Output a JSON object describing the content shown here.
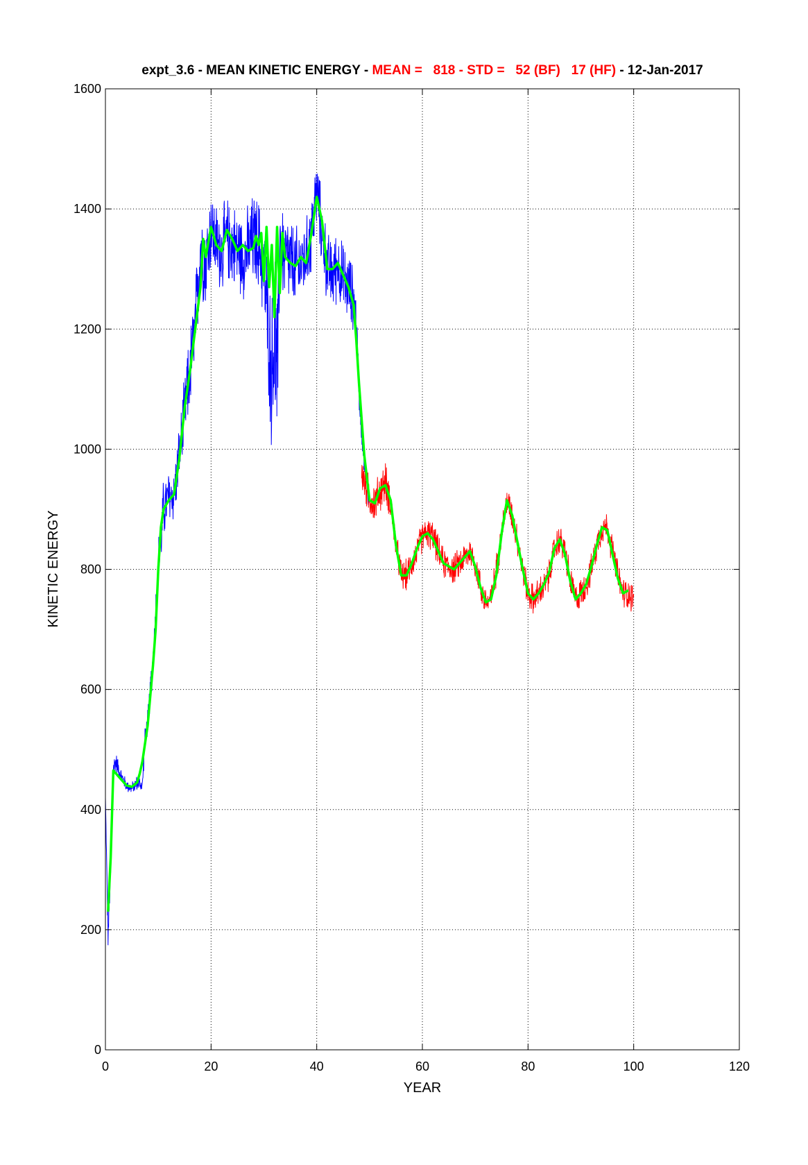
{
  "title_parts": [
    {
      "text": "expt_3.6 - MEAN KINETIC ENERGY - ",
      "color": "#000000"
    },
    {
      "text": "MEAN =   818 - STD =   52 (BF)   17 (HF)",
      "color": "#ff0000"
    },
    {
      "text": " - 12-Jan-2017",
      "color": "#000000"
    }
  ],
  "chart_data": {
    "type": "line",
    "xlabel": "YEAR",
    "ylabel": "KINETIC ENERGY",
    "xlim": [
      0,
      120
    ],
    "ylim": [
      0,
      1600
    ],
    "xticks": [
      0,
      20,
      40,
      60,
      80,
      100,
      120
    ],
    "yticks": [
      0,
      200,
      400,
      600,
      800,
      1000,
      1200,
      1400,
      1600
    ],
    "xtick_labels": [
      "0",
      "20",
      "40",
      "60",
      "80",
      "100",
      "120"
    ],
    "ytick_labels": [
      "0",
      "200",
      "400",
      "600",
      "800",
      "1000",
      "1200",
      "1400",
      "1600"
    ],
    "grid": true,
    "series": [
      {
        "color": "#0000ff",
        "style": "raw-noisy",
        "x": [
          0,
          0.5,
          1,
          1.5,
          2,
          3,
          4,
          5,
          6,
          7,
          7.5,
          8,
          9,
          10,
          11,
          12,
          13,
          14,
          15,
          16,
          17,
          18,
          19,
          20,
          21,
          22,
          23,
          24,
          25,
          26,
          27,
          28,
          29,
          30,
          31,
          31.5,
          32,
          32.5,
          33,
          34,
          35,
          36,
          37,
          38,
          39,
          40,
          41,
          42,
          43,
          44,
          45,
          46,
          47,
          47.5,
          48,
          49,
          50
        ],
        "y": [
          420,
          190,
          300,
          470,
          480,
          455,
          440,
          435,
          445,
          440,
          520,
          545,
          650,
          800,
          900,
          920,
          925,
          990,
          1060,
          1130,
          1200,
          1340,
          1310,
          1370,
          1340,
          1330,
          1350,
          1340,
          1335,
          1320,
          1330,
          1350,
          1340,
          1300,
          1180,
          1120,
          1200,
          1100,
          1350,
          1320,
          1310,
          1300,
          1310,
          1320,
          1360,
          1430,
          1360,
          1300,
          1290,
          1310,
          1280,
          1270,
          1250,
          1210,
          1100,
          980,
          910
        ],
        "noise": [
          0,
          30,
          30,
          25,
          20,
          15,
          12,
          12,
          15,
          15,
          20,
          25,
          40,
          60,
          60,
          55,
          55,
          60,
          70,
          80,
          90,
          90,
          90,
          80,
          80,
          80,
          80,
          80,
          80,
          80,
          85,
          90,
          90,
          100,
          130,
          150,
          200,
          180,
          110,
          90,
          90,
          80,
          80,
          70,
          80,
          70,
          70,
          70,
          70,
          70,
          70,
          70,
          60,
          50,
          40,
          30,
          25
        ]
      },
      {
        "color": "#ff0000",
        "style": "raw-noisy",
        "x": [
          48.5,
          50,
          51,
          52,
          53,
          54,
          55,
          56,
          57,
          58,
          59,
          60,
          61,
          62,
          63,
          64,
          65,
          66,
          67,
          68,
          69,
          70,
          71,
          72,
          73,
          74,
          75,
          76,
          77,
          78,
          79,
          80,
          81,
          82,
          83,
          84,
          85,
          86,
          87,
          88,
          89,
          90,
          91,
          92,
          93,
          94,
          95,
          96,
          97,
          98,
          99,
          100
        ],
        "y": [
          960,
          920,
          910,
          930,
          945,
          910,
          840,
          790,
          790,
          810,
          830,
          855,
          860,
          855,
          830,
          810,
          805,
          800,
          810,
          820,
          830,
          810,
          770,
          745,
          750,
          800,
          860,
          915,
          890,
          850,
          800,
          760,
          750,
          760,
          770,
          790,
          835,
          850,
          830,
          780,
          750,
          760,
          775,
          800,
          840,
          870,
          870,
          830,
          790,
          760,
          760,
          750
        ],
        "noise": [
          40,
          40,
          40,
          40,
          40,
          35,
          30,
          30,
          30,
          30,
          30,
          30,
          30,
          30,
          30,
          30,
          30,
          30,
          30,
          30,
          30,
          30,
          30,
          30,
          30,
          30,
          30,
          30,
          30,
          30,
          30,
          30,
          30,
          30,
          30,
          30,
          30,
          30,
          30,
          30,
          30,
          30,
          30,
          30,
          30,
          30,
          30,
          30,
          30,
          30,
          30,
          30
        ]
      },
      {
        "color": "#00ff00",
        "style": "smoothed",
        "x": [
          0.5,
          1,
          1.5,
          2,
          3,
          4,
          5,
          6,
          6.5,
          7,
          8,
          9,
          9.5,
          10,
          10.5,
          11,
          12,
          13,
          14,
          15,
          16,
          17,
          18,
          18.5,
          19,
          20,
          21,
          22,
          23,
          24,
          25,
          26,
          27,
          28,
          28.5,
          29,
          29.5,
          30,
          30.5,
          31,
          31.5,
          32,
          32.5,
          33,
          33.5,
          34,
          35,
          36,
          37,
          38,
          39,
          40,
          41,
          42,
          43,
          44,
          45,
          46,
          47,
          47.5,
          48,
          49,
          50,
          51,
          52,
          53,
          54,
          55,
          56,
          57,
          58,
          59,
          60,
          61,
          62,
          63,
          64,
          65,
          66,
          67,
          68,
          69,
          70,
          71,
          72,
          73,
          74,
          75,
          76,
          77,
          78,
          79,
          80,
          81,
          82,
          83,
          84,
          85,
          86,
          87,
          88,
          89,
          90,
          91,
          92,
          93,
          94,
          95,
          96,
          97,
          98,
          99
        ],
        "y": [
          230,
          320,
          465,
          460,
          450,
          440,
          438,
          445,
          460,
          480,
          540,
          640,
          700,
          800,
          870,
          900,
          915,
          925,
          985,
          1070,
          1130,
          1200,
          1270,
          1350,
          1320,
          1370,
          1340,
          1330,
          1365,
          1350,
          1330,
          1340,
          1330,
          1335,
          1355,
          1340,
          1360,
          1280,
          1370,
          1270,
          1340,
          1220,
          1370,
          1260,
          1360,
          1320,
          1310,
          1305,
          1320,
          1310,
          1360,
          1420,
          1380,
          1300,
          1300,
          1310,
          1290,
          1270,
          1240,
          1180,
          1110,
          990,
          915,
          910,
          935,
          940,
          915,
          840,
          790,
          790,
          810,
          835,
          855,
          860,
          850,
          830,
          810,
          805,
          800,
          810,
          820,
          830,
          805,
          770,
          745,
          750,
          790,
          860,
          915,
          890,
          845,
          800,
          760,
          750,
          760,
          775,
          795,
          835,
          850,
          825,
          780,
          750,
          760,
          775,
          805,
          840,
          870,
          865,
          825,
          785,
          760,
          765
        ]
      }
    ]
  }
}
